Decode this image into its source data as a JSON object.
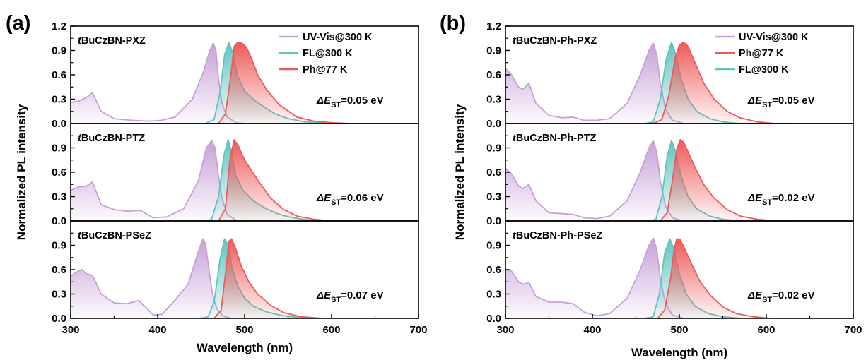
{
  "chart_data": [
    {
      "panel_label": "(a)",
      "type": "area",
      "xlabel": "Wavelength (nm)",
      "ylabel": "Normalized PL intensity",
      "xlim": [
        300,
        700
      ],
      "ylim": [
        0,
        1.2
      ],
      "x_ticks": [
        "300",
        "400",
        "500",
        "600",
        "700"
      ],
      "y_ticks": [
        "0.0",
        "0.3",
        "0.6",
        "0.9",
        "1.2"
      ],
      "y_ticks_sub": [
        "0.0",
        "0.3",
        "0.6",
        "0.9"
      ],
      "legend": [
        "UV-Vis@300 K",
        "FL@300 K",
        "Ph@77 K"
      ],
      "legend_position": "top-right of top subplot",
      "colors": {
        "UV-Vis@300 K": "#c8a0d8",
        "FL@300 K": "#5fc4c0",
        "Ph@77 K": "#ee5a5a"
      },
      "subplots": [
        {
          "title_italic": "t",
          "title": "BuCzBN-PXZ",
          "delta_value": "=0.05 eV",
          "series": [
            {
              "name": "UV-Vis@300 K",
              "x": [
                300,
                310,
                318,
                325,
                335,
                350,
                370,
                390,
                405,
                420,
                440,
                452,
                460,
                464,
                467,
                470,
                474,
                480,
                490,
                500
              ],
              "y": [
                0.26,
                0.28,
                0.32,
                0.38,
                0.15,
                0.06,
                0.04,
                0.03,
                0.04,
                0.08,
                0.3,
                0.62,
                0.9,
                0.99,
                0.9,
                0.55,
                0.25,
                0.08,
                0.01,
                0.0
              ]
            },
            {
              "name": "FL@300 K",
              "x": [
                455,
                465,
                472,
                477,
                482,
                487,
                492,
                500,
                510,
                520,
                535,
                550,
                570,
                600,
                620
              ],
              "y": [
                0.0,
                0.05,
                0.4,
                0.85,
                1.0,
                0.85,
                0.58,
                0.4,
                0.3,
                0.22,
                0.12,
                0.06,
                0.02,
                0.0,
                0.0
              ]
            },
            {
              "name": "Ph@77 K",
              "x": [
                470,
                478,
                484,
                488,
                492,
                497,
                502,
                508,
                515,
                525,
                540,
                560,
                580,
                600,
                620
              ],
              "y": [
                0.0,
                0.12,
                0.58,
                0.95,
                1.0,
                0.99,
                0.94,
                0.8,
                0.6,
                0.42,
                0.23,
                0.08,
                0.03,
                0.01,
                0.0
              ]
            }
          ]
        },
        {
          "title_italic": "t",
          "title": "BuCzBN-PTZ",
          "delta_value": "=0.06 eV",
          "series": [
            {
              "name": "UV-Vis@300 K",
              "x": [
                300,
                310,
                318,
                325,
                335,
                350,
                365,
                380,
                395,
                410,
                430,
                447,
                456,
                462,
                466,
                470,
                474,
                480,
                490,
                500
              ],
              "y": [
                0.38,
                0.42,
                0.43,
                0.48,
                0.2,
                0.14,
                0.12,
                0.13,
                0.04,
                0.05,
                0.15,
                0.5,
                0.9,
                0.99,
                0.9,
                0.55,
                0.28,
                0.08,
                0.01,
                0.0
              ]
            },
            {
              "name": "FL@300 K",
              "x": [
                455,
                462,
                470,
                476,
                481,
                485,
                490,
                498,
                510,
                525,
                540,
                555,
                575,
                600,
                620
              ],
              "y": [
                0.0,
                0.02,
                0.3,
                0.8,
                1.0,
                0.85,
                0.55,
                0.38,
                0.25,
                0.15,
                0.08,
                0.04,
                0.01,
                0.0,
                0.0
              ]
            },
            {
              "name": "Ph@77 K",
              "x": [
                470,
                478,
                483,
                488,
                493,
                500,
                508,
                518,
                530,
                545,
                560,
                580,
                600,
                620
              ],
              "y": [
                0.0,
                0.15,
                0.75,
                1.0,
                0.92,
                0.75,
                0.62,
                0.46,
                0.28,
                0.14,
                0.06,
                0.02,
                0.0,
                0.0
              ]
            }
          ]
        },
        {
          "title_italic": "t",
          "title": "BuCzBN-PSeZ",
          "delta_value": "=0.07 eV",
          "series": [
            {
              "name": "UV-Vis@300 K",
              "x": [
                300,
                307,
                313,
                318,
                325,
                335,
                350,
                365,
                378,
                385,
                395,
                405,
                418,
                435,
                446,
                452,
                455,
                459,
                463,
                468,
                475,
                485,
                495
              ],
              "y": [
                0.52,
                0.57,
                0.6,
                0.55,
                0.53,
                0.3,
                0.19,
                0.18,
                0.22,
                0.15,
                0.04,
                0.05,
                0.2,
                0.42,
                0.8,
                0.98,
                0.92,
                0.6,
                0.3,
                0.12,
                0.03,
                0.0,
                0.0
              ]
            },
            {
              "name": "FL@300 K",
              "x": [
                450,
                458,
                465,
                472,
                477,
                481,
                486,
                492,
                500,
                510,
                525,
                545,
                565,
                590,
                610
              ],
              "y": [
                0.0,
                0.02,
                0.2,
                0.75,
                0.98,
                0.9,
                0.6,
                0.4,
                0.25,
                0.15,
                0.08,
                0.03,
                0.01,
                0.0,
                0.0
              ]
            },
            {
              "name": "Ph@77 K",
              "x": [
                465,
                473,
                478,
                482,
                485,
                490,
                496,
                505,
                515,
                530,
                545,
                565,
                590,
                610
              ],
              "y": [
                0.0,
                0.1,
                0.55,
                0.95,
                0.98,
                0.85,
                0.65,
                0.45,
                0.3,
                0.16,
                0.07,
                0.02,
                0.0,
                0.0
              ]
            }
          ]
        }
      ]
    },
    {
      "panel_label": "(b)",
      "type": "area",
      "xlabel": "Wavelength (nm)",
      "ylabel": "Normalized PL intensity",
      "xlim": [
        300,
        700
      ],
      "ylim": [
        0,
        1.2
      ],
      "x_ticks": [
        "300",
        "400",
        "500",
        "600",
        "700"
      ],
      "y_ticks": [
        "0.0",
        "0.3",
        "0.6",
        "0.9",
        "1.2"
      ],
      "y_ticks_sub": [
        "0.0",
        "0.3",
        "0.6",
        "0.9"
      ],
      "legend": [
        "UV-Vis@300 K",
        "Ph@77 K",
        "FL@300 K"
      ],
      "legend_position": "top-right of top subplot",
      "colors": {
        "UV-Vis@300 K": "#c8a0d8",
        "FL@300 K": "#5fc4c0",
        "Ph@77 K": "#ee5a5a"
      },
      "subplots": [
        {
          "title_italic": "t",
          "title": "BuCzBN-Ph-PXZ",
          "delta_value": "=0.05 eV",
          "series": [
            {
              "name": "UV-Vis@300 K",
              "x": [
                300,
                307,
                315,
                320,
                327,
                335,
                350,
                365,
                378,
                390,
                405,
                420,
                440,
                455,
                465,
                470,
                474,
                478,
                484,
                492,
                505
              ],
              "y": [
                0.68,
                0.6,
                0.45,
                0.42,
                0.5,
                0.25,
                0.1,
                0.07,
                0.08,
                0.04,
                0.04,
                0.06,
                0.25,
                0.6,
                0.9,
                0.99,
                0.85,
                0.5,
                0.18,
                0.04,
                0.0
              ]
            },
            {
              "name": "FL@300 K",
              "x": [
                460,
                470,
                478,
                485,
                491,
                496,
                502,
                510,
                520,
                535,
                550,
                570,
                590,
                610
              ],
              "y": [
                0.0,
                0.02,
                0.3,
                0.8,
                1.0,
                0.85,
                0.55,
                0.3,
                0.15,
                0.06,
                0.02,
                0.0,
                0.0,
                0.0
              ]
            },
            {
              "name": "Ph@77 K",
              "x": [
                470,
                480,
                488,
                495,
                500,
                505,
                510,
                518,
                528,
                540,
                555,
                570,
                590,
                610,
                630
              ],
              "y": [
                0.0,
                0.05,
                0.35,
                0.8,
                0.97,
                1.0,
                0.95,
                0.75,
                0.5,
                0.3,
                0.15,
                0.07,
                0.02,
                0.0,
                0.0
              ]
            }
          ]
        },
        {
          "title_italic": "t",
          "title": "BuCzBN-Ph-PTZ",
          "delta_value": "=0.02 eV",
          "series": [
            {
              "name": "UV-Vis@300 K",
              "x": [
                300,
                307,
                315,
                320,
                327,
                335,
                350,
                365,
                378,
                390,
                405,
                420,
                440,
                455,
                465,
                470,
                474,
                478,
                484,
                492,
                505
              ],
              "y": [
                0.65,
                0.58,
                0.43,
                0.4,
                0.45,
                0.25,
                0.1,
                0.09,
                0.08,
                0.04,
                0.03,
                0.06,
                0.25,
                0.6,
                0.9,
                0.99,
                0.85,
                0.5,
                0.18,
                0.04,
                0.0
              ]
            },
            {
              "name": "FL@300 K",
              "x": [
                465,
                473,
                480,
                486,
                491,
                496,
                502,
                510,
                520,
                535,
                550,
                570,
                590,
                610
              ],
              "y": [
                0.0,
                0.02,
                0.3,
                0.8,
                0.99,
                0.85,
                0.55,
                0.3,
                0.15,
                0.06,
                0.02,
                0.0,
                0.0,
                0.0
              ]
            },
            {
              "name": "Ph@77 K",
              "x": [
                478,
                486,
                492,
                497,
                501,
                505,
                510,
                518,
                528,
                540,
                555,
                570,
                590,
                610,
                630
              ],
              "y": [
                0.0,
                0.1,
                0.5,
                0.88,
                1.0,
                0.97,
                0.85,
                0.66,
                0.45,
                0.28,
                0.14,
                0.06,
                0.02,
                0.0,
                0.0
              ]
            }
          ]
        },
        {
          "title_italic": "t",
          "title": "BuCzBN-Ph-PSeZ",
          "delta_value": "=0.02 eV",
          "series": [
            {
              "name": "UV-Vis@300 K",
              "x": [
                300,
                307,
                315,
                320,
                327,
                335,
                350,
                365,
                378,
                390,
                405,
                420,
                440,
                455,
                465,
                470,
                474,
                478,
                484,
                492,
                505
              ],
              "y": [
                0.6,
                0.58,
                0.45,
                0.42,
                0.44,
                0.27,
                0.2,
                0.2,
                0.18,
                0.08,
                0.03,
                0.06,
                0.25,
                0.6,
                0.9,
                0.99,
                0.85,
                0.5,
                0.18,
                0.04,
                0.0
              ]
            },
            {
              "name": "FL@300 K",
              "x": [
                460,
                470,
                477,
                483,
                489,
                494,
                500,
                508,
                518,
                533,
                550,
                570,
                590,
                610
              ],
              "y": [
                0.0,
                0.02,
                0.3,
                0.8,
                0.98,
                0.85,
                0.55,
                0.3,
                0.15,
                0.06,
                0.02,
                0.0,
                0.0,
                0.0
              ]
            },
            {
              "name": "Ph@77 K",
              "x": [
                475,
                483,
                490,
                494,
                497,
                501,
                506,
                514,
                524,
                536,
                550,
                565,
                585,
                605,
                625
              ],
              "y": [
                0.0,
                0.1,
                0.5,
                0.85,
                0.98,
                0.97,
                0.86,
                0.67,
                0.45,
                0.28,
                0.14,
                0.06,
                0.02,
                0.0,
                0.0
              ]
            }
          ]
        }
      ]
    }
  ]
}
